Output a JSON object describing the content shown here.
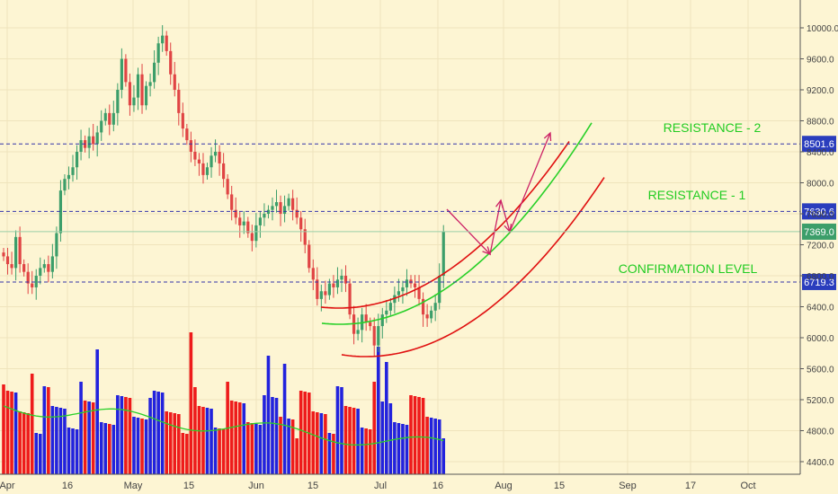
{
  "chart_data": {
    "type": "candlestick",
    "title": "",
    "y_axis_ticks": [
      "4400.0",
      "4800.0",
      "5200.0",
      "5600.0",
      "6000.0",
      "6400.0",
      "6800.0",
      "7200.0",
      "7600.0",
      "8000.0",
      "8400.0",
      "8800.0",
      "9200.0",
      "9600.0",
      "10000.0"
    ],
    "x_axis_ticks": [
      "Apr",
      "16",
      "May",
      "15",
      "Jun",
      "15",
      "Jul",
      "16",
      "Aug",
      "15",
      "Sep",
      "17",
      "Oct"
    ],
    "ylim": [
      4200,
      10250
    ],
    "horizontal_levels": [
      {
        "value": 8501.6,
        "label": "8501.6",
        "style": "dashed"
      },
      {
        "value": 7630.6,
        "label": "7630.6",
        "style": "dashed"
      },
      {
        "value": 6719.3,
        "label": "6719.3",
        "style": "dashed"
      }
    ],
    "last_price": {
      "value": 7369.0,
      "label": "7369.0"
    },
    "annotations": [
      {
        "text": "RESISTANCE - 2",
        "near_value": 8501.6
      },
      {
        "text": "RESISTANCE - 1",
        "near_value": 7630.6
      },
      {
        "text": "CONFIRMATION LEVEL",
        "near_value": 6719.3
      }
    ],
    "candles_approx_close": [
      7050,
      6950,
      6900,
      7300,
      6950,
      6850,
      6700,
      6650,
      6800,
      6900,
      6950,
      6850,
      7050,
      7350,
      7900,
      8050,
      8100,
      8200,
      8400,
      8550,
      8450,
      8600,
      8500,
      8650,
      8800,
      8900,
      8750,
      8900,
      9200,
      9600,
      9300,
      9000,
      9100,
      9400,
      9000,
      9250,
      9300,
      9550,
      9800,
      9900,
      9700,
      9400,
      9200,
      8900,
      8700,
      8550,
      8400,
      8300,
      8250,
      8100,
      8200,
      8350,
      8400,
      8250,
      8050,
      7850,
      7650,
      7550,
      7450,
      7500,
      7350,
      7250,
      7450,
      7550,
      7600,
      7650,
      7700,
      7750,
      7600,
      7700,
      7800,
      7650,
      7550,
      7400,
      7200,
      6900,
      6750,
      6500,
      6600,
      6550,
      6700,
      6650,
      6750,
      6800,
      6700,
      6300,
      6050,
      6100,
      6300,
      6200,
      6150,
      5900,
      6150,
      6300,
      6350,
      6450,
      6550,
      6600,
      6650,
      6750,
      6700,
      6650,
      6500,
      6300,
      6250,
      6350,
      6450,
      6800,
      7369
    ],
    "volume_series": "red/blue bars with green moving average line",
    "colors": {
      "up": "#3c9e6a",
      "down": "#e04444",
      "vol_up": "#2222dd",
      "vol_down": "#ee1b1b",
      "channel": "#e01010",
      "midline": "#28d028",
      "arrows": "#cc2266",
      "levels": "#3333aa"
    }
  }
}
